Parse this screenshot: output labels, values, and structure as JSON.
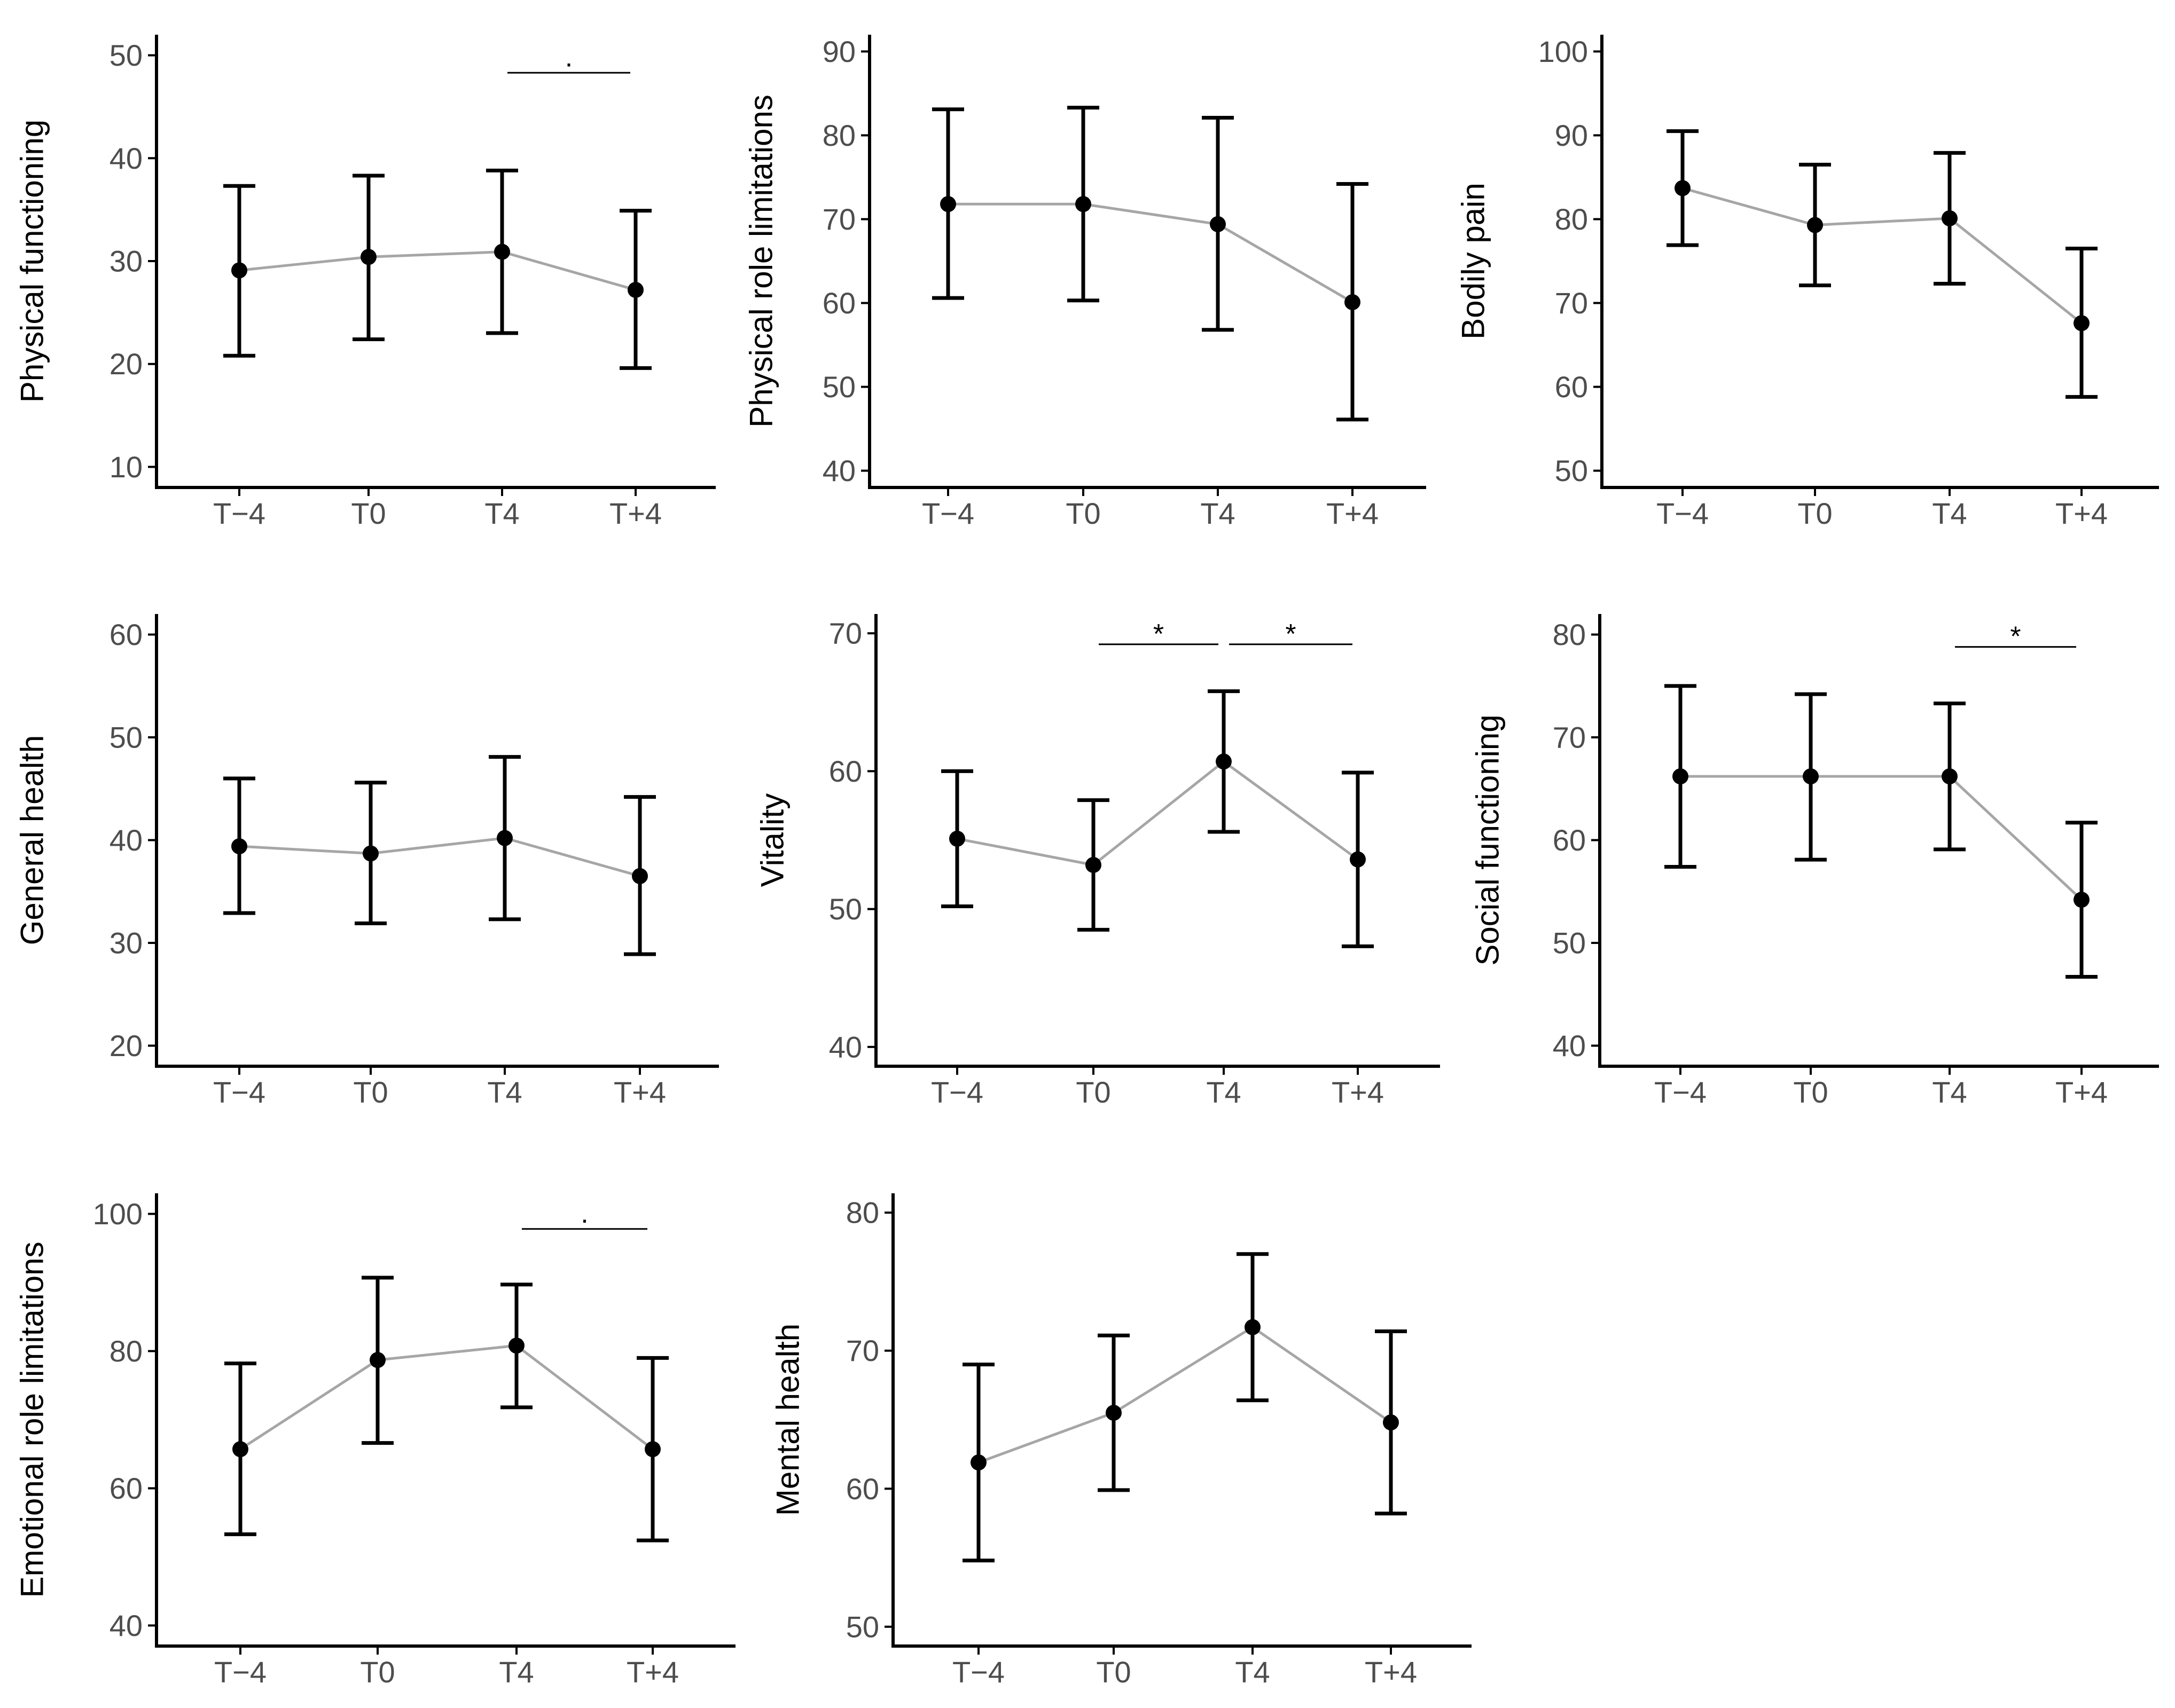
{
  "chart_data": [
    {
      "type": "line",
      "ylabel": "Physical functioning",
      "categories": [
        "T−4",
        "T0",
        "T4",
        "T+4"
      ],
      "ylim": [
        8,
        52
      ],
      "yticks": [
        10,
        20,
        30,
        40,
        50
      ],
      "values": [
        29.1,
        30.4,
        30.9,
        27.2
      ],
      "error_low": [
        20.8,
        22.4,
        23.0,
        19.6
      ],
      "error_high": [
        37.3,
        38.3,
        38.8,
        34.9
      ],
      "significance": [
        {
          "from": 2,
          "to": 3,
          "y": 48.3,
          "label": "."
        }
      ]
    },
    {
      "type": "line",
      "ylabel": "Physical role limitations",
      "categories": [
        "T−4",
        "T0",
        "T4",
        "T+4"
      ],
      "ylim": [
        38,
        92
      ],
      "yticks": [
        40,
        50,
        60,
        70,
        80,
        90
      ],
      "values": [
        71.8,
        71.8,
        69.4,
        60.1
      ],
      "error_low": [
        60.6,
        60.3,
        56.8,
        46.1
      ],
      "error_high": [
        83.1,
        83.3,
        82.1,
        74.2
      ],
      "significance": []
    },
    {
      "type": "line",
      "ylabel": "Bodily pain",
      "categories": [
        "T−4",
        "T0",
        "T4",
        "T+4"
      ],
      "ylim": [
        48,
        102
      ],
      "yticks": [
        50,
        60,
        70,
        80,
        90,
        100
      ],
      "values": [
        83.7,
        79.3,
        80.1,
        67.6
      ],
      "error_low": [
        76.9,
        72.1,
        72.3,
        58.8
      ],
      "error_high": [
        90.5,
        86.5,
        87.9,
        76.5
      ],
      "significance": []
    },
    {
      "type": "line",
      "ylabel": "General health",
      "categories": [
        "T−4",
        "T0",
        "T4",
        "T+4"
      ],
      "ylim": [
        18,
        62
      ],
      "yticks": [
        20,
        30,
        40,
        50,
        60
      ],
      "values": [
        39.4,
        38.7,
        40.2,
        36.5
      ],
      "error_low": [
        32.9,
        31.9,
        32.3,
        28.9
      ],
      "error_high": [
        46.0,
        45.6,
        48.1,
        44.2
      ],
      "significance": []
    },
    {
      "type": "line",
      "ylabel": "Vitality",
      "categories": [
        "T−4",
        "T0",
        "T4",
        "T+4"
      ],
      "ylim": [
        38.6,
        71.4
      ],
      "yticks": [
        40,
        50,
        60,
        70
      ],
      "values": [
        55.1,
        53.2,
        60.7,
        53.6
      ],
      "error_low": [
        50.2,
        48.5,
        55.6,
        47.3
      ],
      "error_high": [
        60.0,
        57.9,
        65.8,
        59.9
      ],
      "significance": [
        {
          "from": 1,
          "to": 2,
          "y": 69.2,
          "label": "*"
        },
        {
          "from": 2,
          "to": 3,
          "y": 69.2,
          "label": "*"
        }
      ]
    },
    {
      "type": "line",
      "ylabel": "Social functioning",
      "categories": [
        "T−4",
        "T0",
        "T4",
        "T+4"
      ],
      "ylim": [
        38,
        82
      ],
      "yticks": [
        40,
        50,
        60,
        70,
        80
      ],
      "values": [
        66.2,
        66.2,
        66.2,
        54.2
      ],
      "error_low": [
        57.4,
        58.1,
        59.1,
        46.7
      ],
      "error_high": [
        75.0,
        74.2,
        73.3,
        61.7
      ],
      "significance": [
        {
          "from": 2,
          "to": 3,
          "y": 78.8,
          "label": "*"
        }
      ]
    },
    {
      "type": "line",
      "ylabel": "Emotional role limitations",
      "categories": [
        "T−4",
        "T0",
        "T4",
        "T+4"
      ],
      "ylim": [
        37,
        103
      ],
      "yticks": [
        40,
        60,
        80,
        100
      ],
      "values": [
        65.7,
        78.7,
        80.8,
        65.7
      ],
      "error_low": [
        53.3,
        66.6,
        71.8,
        52.4
      ],
      "error_high": [
        78.2,
        90.7,
        89.7,
        79.0
      ],
      "significance": [
        {
          "from": 2,
          "to": 3,
          "y": 97.8,
          "label": "."
        }
      ]
    },
    {
      "type": "line",
      "ylabel": "Mental health",
      "categories": [
        "T−4",
        "T0",
        "T4",
        "T+4"
      ],
      "ylim": [
        48.6,
        81.4
      ],
      "yticks": [
        50,
        60,
        70,
        80
      ],
      "values": [
        61.9,
        65.5,
        71.7,
        64.8
      ],
      "error_low": [
        54.8,
        59.9,
        66.4,
        58.2
      ],
      "error_high": [
        69.0,
        71.1,
        77.0,
        71.4
      ],
      "significance": []
    }
  ],
  "colors": {
    "line": "#a6a6a6",
    "point": "#000000",
    "errorbar": "#000000",
    "axis": "#000000",
    "tick_label": "#4d4d4d"
  }
}
